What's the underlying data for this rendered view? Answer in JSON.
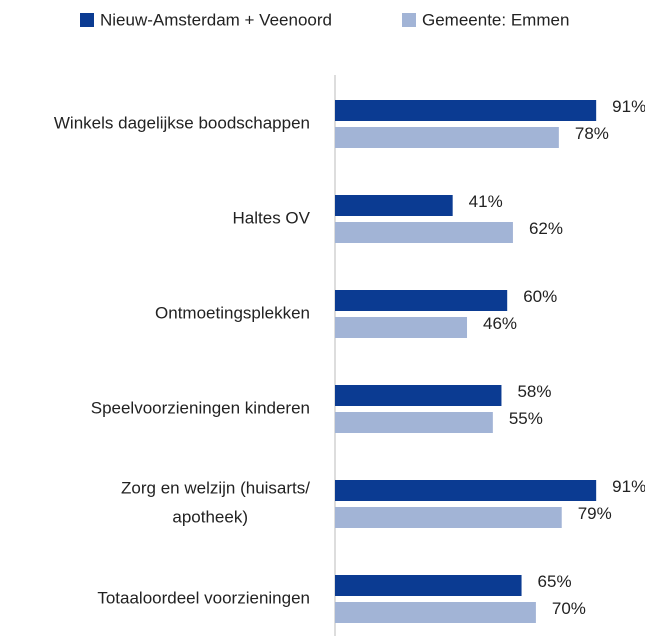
{
  "chart_data": {
    "type": "hbar",
    "categories": [
      "Winkels dagelijkse boodschappen",
      "Haltes OV",
      "Ontmoetingsplekken",
      "Speelvoorzieningen kinderen",
      "Zorg en welzijn (huisarts/\napotheek)",
      "Totaaloordeel voorzieningen"
    ],
    "series": [
      {
        "name": "Nieuw-Amsterdam + Veenoord",
        "color": "#0b3b92",
        "values": [
          91,
          41,
          60,
          58,
          91,
          65
        ],
        "value_labels": [
          "91%",
          "41%",
          "60%",
          "58%",
          "91%",
          "65%"
        ]
      },
      {
        "name": "Gemeente: Emmen",
        "color": "#a2b4d6",
        "values": [
          78,
          62,
          46,
          55,
          79,
          70
        ],
        "value_labels": [
          "78%",
          "62%",
          "46%",
          "55%",
          "79%",
          "70%"
        ]
      }
    ],
    "xlim": [
      0,
      100
    ]
  }
}
